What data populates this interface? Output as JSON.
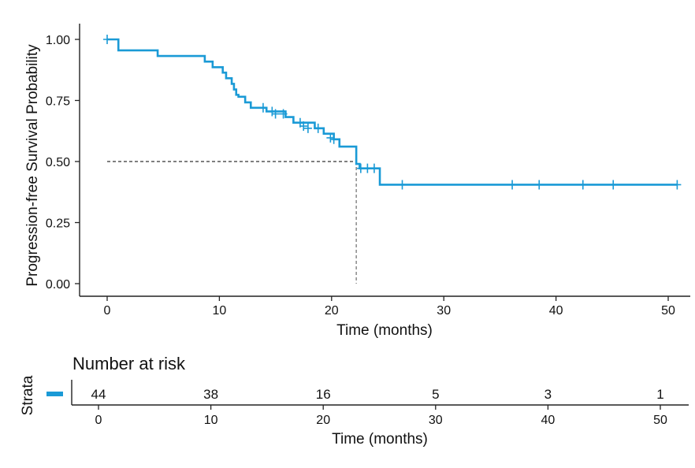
{
  "chart_data": {
    "type": "line",
    "subtype": "kaplan-meier",
    "xlabel": "Time (months)",
    "ylabel": "Progression-free Survival Probability",
    "xlim": [
      0,
      52
    ],
    "ylim": [
      0,
      1
    ],
    "x_ticks": [
      "0",
      "10",
      "20",
      "30",
      "40",
      "50"
    ],
    "y_ticks": [
      "0.00",
      "0.25",
      "0.50",
      "0.75",
      "1.00"
    ],
    "series": [
      {
        "name": "Strata",
        "color": "#1a9ad6",
        "steps": [
          [
            0,
            1.0
          ],
          [
            1,
            0.955
          ],
          [
            4.5,
            0.932
          ],
          [
            8.7,
            0.909
          ],
          [
            9.4,
            0.886
          ],
          [
            10.3,
            0.864
          ],
          [
            10.6,
            0.841
          ],
          [
            11.1,
            0.818
          ],
          [
            11.3,
            0.795
          ],
          [
            11.5,
            0.773
          ],
          [
            11.7,
            0.765
          ],
          [
            12.3,
            0.742
          ],
          [
            12.8,
            0.72
          ],
          [
            14.2,
            0.705
          ],
          [
            15.9,
            0.682
          ],
          [
            16.6,
            0.659
          ],
          [
            18.5,
            0.636
          ],
          [
            19.3,
            0.614
          ],
          [
            20.2,
            0.591
          ],
          [
            20.7,
            0.561
          ],
          [
            22.2,
            0.49
          ],
          [
            22.5,
            0.472
          ],
          [
            24.3,
            0.405
          ],
          [
            50.8,
            0.405
          ]
        ],
        "censored": [
          [
            0,
            1.0
          ],
          [
            13.9,
            0.72
          ],
          [
            14.7,
            0.705
          ],
          [
            15.0,
            0.695
          ],
          [
            15.7,
            0.695
          ],
          [
            17.2,
            0.659
          ],
          [
            17.5,
            0.645
          ],
          [
            17.9,
            0.636
          ],
          [
            18.8,
            0.636
          ],
          [
            19.9,
            0.597
          ],
          [
            20.2,
            0.591
          ],
          [
            22.6,
            0.472
          ],
          [
            23.2,
            0.472
          ],
          [
            23.8,
            0.472
          ],
          [
            26.3,
            0.405
          ],
          [
            36.1,
            0.405
          ],
          [
            38.5,
            0.405
          ],
          [
            42.4,
            0.405
          ],
          [
            45.1,
            0.405
          ],
          [
            50.8,
            0.405
          ]
        ]
      }
    ],
    "median": {
      "time": 22.2,
      "probability": 0.5
    },
    "risk_table": {
      "title": "Number at risk",
      "strata_label": "Strata",
      "times": [
        0,
        10,
        20,
        30,
        40,
        50
      ],
      "counts": [
        "44",
        "38",
        "16",
        "5",
        "3",
        "1"
      ],
      "xlabel": "Time (months)",
      "x_ticks": [
        "0",
        "10",
        "20",
        "30",
        "40",
        "50"
      ]
    }
  }
}
